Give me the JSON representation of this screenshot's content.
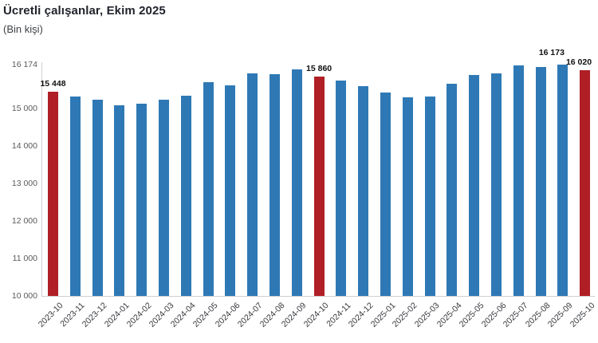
{
  "chart_data": {
    "type": "bar",
    "title": "Ücretli çalışanlar, Ekim 2025",
    "subtitle": "(Bin kişi)",
    "xlabel": "",
    "ylabel": "",
    "legend": "none",
    "grid": false,
    "ylim": [
      10000,
      16174
    ],
    "categories": [
      "2023-10",
      "2023-11",
      "2023-12",
      "2024-01",
      "2024-02",
      "2024-03",
      "2024-04",
      "2024-05",
      "2024-06",
      "2024-07",
      "2024-08",
      "2024-09",
      "2024-10",
      "2024-11",
      "2024-12",
      "2025-01",
      "2025-02",
      "2025-03",
      "2025-04",
      "2025-05",
      "2025-06",
      "2025-07",
      "2025-08",
      "2025-09",
      "2025-10"
    ],
    "values": [
      15448,
      15325,
      15240,
      15090,
      15135,
      15245,
      15340,
      15705,
      15610,
      15940,
      15925,
      16050,
      15860,
      15755,
      15600,
      15430,
      15295,
      15325,
      15670,
      15900,
      15945,
      16145,
      16110,
      16173,
      16020
    ],
    "highlight_indices": [
      0,
      12,
      24
    ],
    "data_labels": [
      {
        "index": 0,
        "text": "15 448"
      },
      {
        "index": 12,
        "text": "15 860"
      },
      {
        "index": 23,
        "text": "16 173"
      },
      {
        "index": 24,
        "text": "16 020"
      }
    ],
    "y_ticks": [
      {
        "value": 16174,
        "label": "16 174"
      },
      {
        "value": 15000,
        "label": "15 000"
      },
      {
        "value": 14000,
        "label": "14 000"
      },
      {
        "value": 13000,
        "label": "13 000"
      },
      {
        "value": 12000,
        "label": "12 000"
      },
      {
        "value": 11000,
        "label": "11 000"
      },
      {
        "value": 10000,
        "label": "10 000"
      }
    ],
    "colors": {
      "bar_default": "#2E79B5",
      "bar_highlight": "#B01F26",
      "axis_line": "#cfcfcf",
      "tick_text": "#595959",
      "label_text": "#111111"
    }
  }
}
